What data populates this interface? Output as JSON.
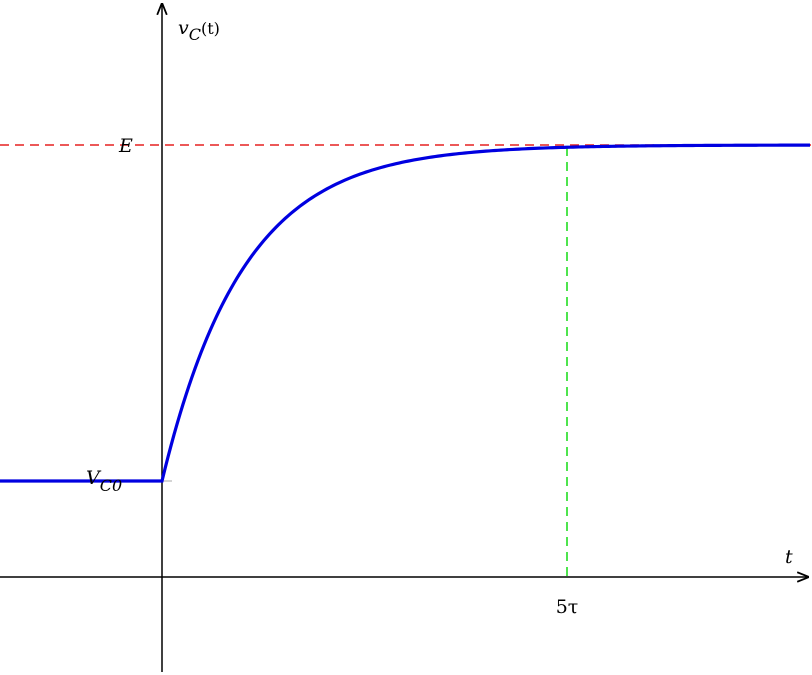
{
  "y_axis_label": {
    "main": "v",
    "sub": "C",
    "rest": "(t)"
  },
  "x_axis_label": "t",
  "level_labels": {
    "final": "E",
    "initial": {
      "main": "V",
      "sub": "C0"
    }
  },
  "time_label": "5τ"
}
